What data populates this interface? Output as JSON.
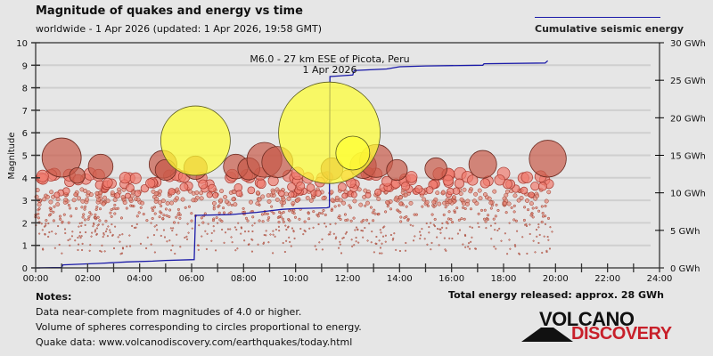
{
  "header": {
    "title": "Magnitude of quakes and energy vs time",
    "subtitle": "worldwide -  1 Apr 2026 (updated: 1 Apr 2026, 19:58 GMT)",
    "legend_label": "Cumulative seismic energy"
  },
  "notes": {
    "heading": "Notes:",
    "lines": [
      "Data near-complete from magnitudes of 4.0 or higher.",
      "Volume of spheres corresponding to circles proportional to energy.",
      "Quake data: www.volcanodiscovery.com/earthquakes/today.html"
    ]
  },
  "total_energy": "Total energy released: approx. 28 GWh",
  "logo": {
    "line1": "VOLCANO",
    "line2": "DISCOVERY"
  },
  "colors": {
    "energy_line": "#1a1aa8",
    "highlight_quake": "#ffff33",
    "quake": "#d04a3a",
    "logo_red": "#c8202a"
  },
  "chart_data": {
    "type": "scatter",
    "title": "Magnitude of quakes and energy vs time",
    "xlabel": "",
    "ylabel": "Magnitude",
    "y2label": "Cumulative seismic energy",
    "xlim": [
      0,
      24
    ],
    "ylim": [
      0,
      10
    ],
    "y2lim": [
      0,
      30
    ],
    "grid": true,
    "legend": "top-right",
    "x_ticks": [
      "00:00",
      "02:00",
      "04:00",
      "06:00",
      "08:00",
      "10:00",
      "12:00",
      "14:00",
      "16:00",
      "18:00",
      "20:00",
      "22:00",
      "24:00"
    ],
    "y_ticks": [
      "0",
      "1",
      "2",
      "3",
      "4",
      "5",
      "6",
      "7",
      "8",
      "9",
      "10"
    ],
    "y2_ticks": [
      "0 GWh",
      "5 GWh",
      "10 GWh",
      "15 GWh",
      "20 GWh",
      "25 GWh",
      "30 GWh"
    ],
    "annotation": {
      "line1": "M6.0 - 27 km ESE of Picota, Peru",
      "line2": "1 Apr 2026"
    },
    "energy_series": {
      "name": "Cumulative seismic energy",
      "points": [
        [
          0,
          0
        ],
        [
          1.0,
          0.05
        ],
        [
          1.05,
          0.4
        ],
        [
          2.5,
          0.6
        ],
        [
          3.5,
          0.8
        ],
        [
          4.5,
          0.9
        ],
        [
          5.0,
          1.0
        ],
        [
          6.1,
          1.1
        ],
        [
          6.15,
          7.0
        ],
        [
          7.5,
          7.1
        ],
        [
          8.5,
          7.4
        ],
        [
          9.0,
          7.6
        ],
        [
          9.5,
          7.8
        ],
        [
          10.0,
          7.9
        ],
        [
          11.2,
          8.0
        ],
        [
          11.3,
          8.1
        ],
        [
          11.32,
          25.5
        ],
        [
          12.2,
          25.7
        ],
        [
          12.25,
          26.3
        ],
        [
          13.5,
          26.5
        ],
        [
          14.0,
          26.8
        ],
        [
          15.0,
          26.9
        ],
        [
          17.2,
          27.0
        ],
        [
          17.25,
          27.2
        ],
        [
          19.6,
          27.3
        ],
        [
          19.7,
          27.6
        ]
      ]
    },
    "highlighted_quakes": [
      {
        "time": 6.15,
        "mag": 5.65,
        "size": "large"
      },
      {
        "time": 11.3,
        "mag": 6.0,
        "size": "largest"
      },
      {
        "time": 12.2,
        "mag": 5.1,
        "size": "medium"
      }
    ],
    "major_quakes": [
      {
        "time": 1.0,
        "mag": 4.9
      },
      {
        "time": 1.6,
        "mag": 4.1
      },
      {
        "time": 2.5,
        "mag": 4.5
      },
      {
        "time": 4.9,
        "mag": 4.6
      },
      {
        "time": 5.0,
        "mag": 4.35
      },
      {
        "time": 6.15,
        "mag": 4.45
      },
      {
        "time": 7.7,
        "mag": 4.5
      },
      {
        "time": 8.2,
        "mag": 4.4
      },
      {
        "time": 8.8,
        "mag": 4.8
      },
      {
        "time": 9.3,
        "mag": 4.7
      },
      {
        "time": 11.4,
        "mag": 4.4
      },
      {
        "time": 12.6,
        "mag": 4.55
      },
      {
        "time": 13.1,
        "mag": 4.75
      },
      {
        "time": 13.9,
        "mag": 4.35
      },
      {
        "time": 15.4,
        "mag": 4.4
      },
      {
        "time": 17.2,
        "mag": 4.6
      },
      {
        "time": 19.7,
        "mag": 4.85
      }
    ]
  }
}
